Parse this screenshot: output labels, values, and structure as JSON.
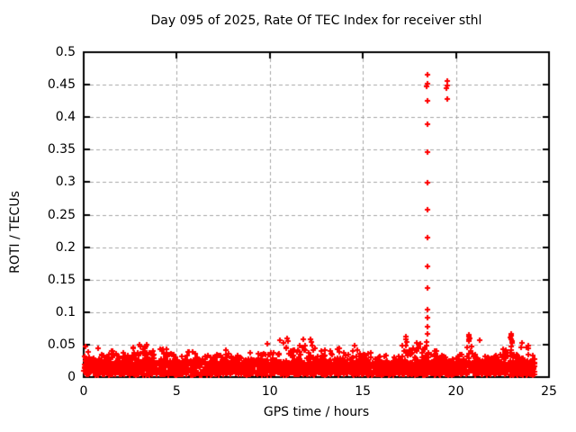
{
  "chart_data": {
    "type": "scatter",
    "title": "Day 095 of 2025, Rate Of TEC Index for receiver sthl",
    "xlabel": "GPS time / hours",
    "ylabel": "ROTI / TECUs",
    "xlim": [
      0,
      25
    ],
    "ylim": [
      0,
      0.5
    ],
    "xticks": [
      0,
      5,
      10,
      15,
      20,
      25
    ],
    "yticks": [
      0,
      0.05,
      0.1,
      0.15,
      0.2,
      0.25,
      0.3,
      0.35,
      0.4,
      0.45,
      0.5
    ],
    "grid": true,
    "legend": "none",
    "marker": "plus",
    "marker_size_px": 7,
    "colors": {
      "marker": "#ff0000",
      "grid": "#a6a6a6",
      "axis": "#000000",
      "background": "#ffffff",
      "text": "#000000"
    },
    "series": [
      {
        "name": "ROTI",
        "outliers": [
          [
            0.08,
            0.047
          ],
          [
            3.0,
            0.05
          ],
          [
            3.05,
            0.047
          ],
          [
            9.85,
            0.051
          ],
          [
            10.55,
            0.057
          ],
          [
            10.75,
            0.053
          ],
          [
            10.95,
            0.06
          ],
          [
            11.0,
            0.055
          ],
          [
            11.8,
            0.058
          ],
          [
            12.2,
            0.058
          ],
          [
            12.25,
            0.054
          ],
          [
            14.55,
            0.049
          ],
          [
            17.3,
            0.063
          ],
          [
            17.33,
            0.058
          ],
          [
            17.36,
            0.054
          ],
          [
            17.9,
            0.052
          ],
          [
            18.42,
            0.048
          ],
          [
            18.44,
            0.054
          ],
          [
            18.46,
            0.066
          ],
          [
            18.45,
            0.078
          ],
          [
            18.46,
            0.092
          ],
          [
            18.46,
            0.104
          ],
          [
            18.45,
            0.137
          ],
          [
            18.46,
            0.171
          ],
          [
            18.45,
            0.214
          ],
          [
            18.46,
            0.257
          ],
          [
            18.46,
            0.299
          ],
          [
            18.45,
            0.346
          ],
          [
            18.46,
            0.389
          ],
          [
            18.46,
            0.425
          ],
          [
            18.44,
            0.448
          ],
          [
            18.48,
            0.452
          ],
          [
            18.46,
            0.465
          ],
          [
            19.51,
            0.445
          ],
          [
            19.52,
            0.455
          ],
          [
            19.53,
            0.428
          ],
          [
            19.54,
            0.449
          ],
          [
            20.68,
            0.058
          ],
          [
            20.7,
            0.065
          ],
          [
            20.71,
            0.055
          ],
          [
            20.72,
            0.062
          ],
          [
            20.74,
            0.06
          ],
          [
            21.28,
            0.057
          ],
          [
            22.93,
            0.061
          ],
          [
            22.95,
            0.067
          ],
          [
            22.96,
            0.064
          ],
          [
            22.97,
            0.058
          ],
          [
            23.0,
            0.055
          ],
          [
            23.02,
            0.052
          ],
          [
            23.55,
            0.052
          ],
          [
            23.9,
            0.049
          ]
        ],
        "baseline_band": {
          "description": "dense noise band of ~2800 points between 0 and ~0.05 TECUs spanning the whole day",
          "h_start": 0,
          "h_end": 24.25,
          "bin_hours": 0.5,
          "points_per_bin": 58,
          "v_min": 0.003,
          "core_top": 0.022,
          "seed": 95,
          "envelope": [
            0.047,
            0.045,
            0.035,
            0.04,
            0.045,
            0.048,
            0.05,
            0.042,
            0.045,
            0.038,
            0.035,
            0.04,
            0.032,
            0.035,
            0.038,
            0.042,
            0.035,
            0.038,
            0.042,
            0.04,
            0.045,
            0.052,
            0.048,
            0.05,
            0.052,
            0.042,
            0.045,
            0.048,
            0.04,
            0.042,
            0.038,
            0.04,
            0.035,
            0.042,
            0.05,
            0.048,
            0.052,
            0.048,
            0.035,
            0.032,
            0.035,
            0.048,
            0.035,
            0.032,
            0.035,
            0.05,
            0.045,
            0.048,
            0.04
          ]
        }
      }
    ]
  }
}
